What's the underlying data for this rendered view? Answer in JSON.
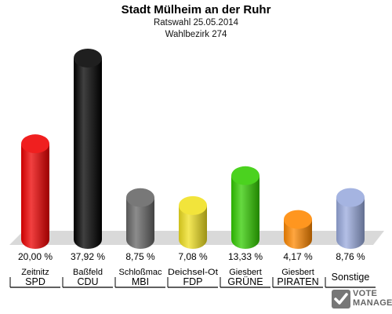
{
  "chart_data": {
    "type": "bar",
    "title": "Stadt Mülheim an der Ruhr",
    "subtitle": [
      "Ratswahl 25.05.2014",
      "Wahlbezirk 274"
    ],
    "categories": [
      "SPD",
      "CDU",
      "MBI",
      "FDP",
      "GRÜNE",
      "PIRATEN",
      "Sonstige"
    ],
    "candidates": [
      "Zeitnitz",
      "Baßfeld",
      "Schloßmac",
      "Deichsel-Ot",
      "Giesbert",
      "Giesbert",
      ""
    ],
    "values": [
      20.0,
      37.92,
      8.75,
      7.08,
      13.33,
      4.17,
      8.76
    ],
    "value_labels": [
      "20,00 %",
      "37,92 %",
      "8,75 %",
      "7,08 %",
      "13,33 %",
      "4,17 %",
      "8,76 %"
    ],
    "colors": [
      "#ee0000",
      "#000000",
      "#666666",
      "#f0e020",
      "#33cc00",
      "#ff8800",
      "#99aadd"
    ],
    "ylim": [
      0,
      40
    ],
    "grid": false,
    "legend": "none"
  },
  "logo": {
    "line1": "VOTE",
    "line2": "MANAGER"
  }
}
